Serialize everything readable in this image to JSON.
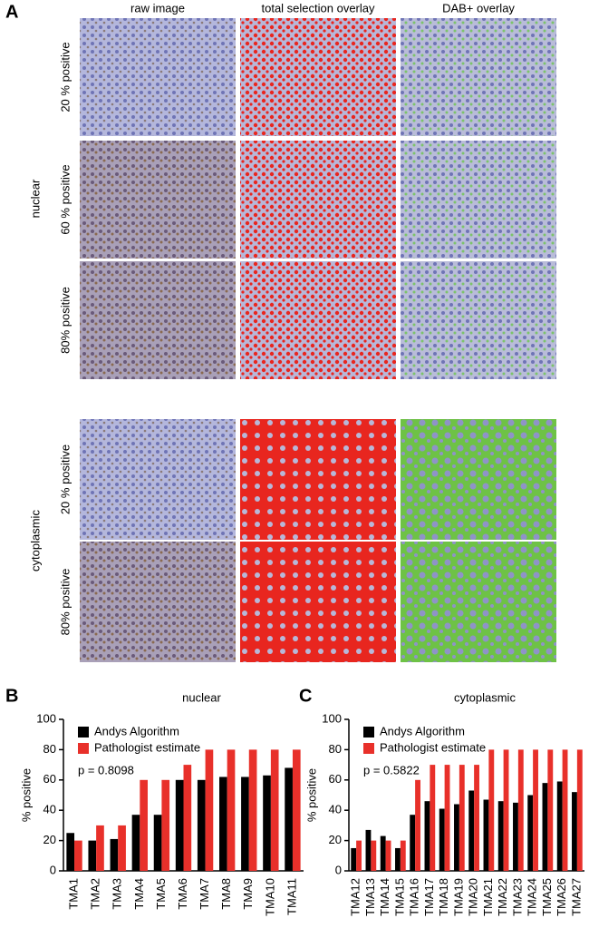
{
  "panel_a": {
    "label": "A",
    "columns": [
      "raw image",
      "total selection overlay",
      "DAB+ overlay"
    ],
    "groups": [
      {
        "name": "nuclear",
        "rows": [
          "20 % positive",
          "60 % positive",
          "80% positive"
        ]
      },
      {
        "name": "cytoplasmic",
        "rows": [
          "20 % positive",
          "80% positive"
        ]
      }
    ]
  },
  "chart_data": [
    {
      "type": "bar",
      "panel": "B",
      "title": "nuclear",
      "ylabel": "% positive",
      "annotation": "p = 0.8098",
      "categories": [
        "TMA1",
        "TMA2",
        "TMA3",
        "TMA4",
        "TMA5",
        "TMA6",
        "TMA7",
        "TMA8",
        "TMA9",
        "TMA10",
        "TMA11"
      ],
      "series": [
        {
          "name": "Andys Algorithm",
          "color": "#000000",
          "values": [
            25,
            20,
            21,
            37,
            37,
            60,
            60,
            62,
            62,
            63,
            68
          ]
        },
        {
          "name": "Pathologist estimate",
          "color": "#e8302a",
          "values": [
            20,
            30,
            30,
            60,
            60,
            70,
            80,
            80,
            80,
            80,
            80
          ]
        }
      ],
      "ylim": [
        0,
        100
      ],
      "yticks": [
        0,
        20,
        40,
        60,
        80,
        100
      ],
      "legend": "upper left"
    },
    {
      "type": "bar",
      "panel": "C",
      "title": "cytoplasmic",
      "ylabel": "% positive",
      "annotation": "p = 0.5822",
      "categories": [
        "TMA12",
        "TMA13",
        "TMA14",
        "TMA15",
        "TMA16",
        "TMA17",
        "TMA18",
        "TMA19",
        "TMA20",
        "TMA21",
        "TMA22",
        "TMA23",
        "TMA24",
        "TMA25",
        "TMA26",
        "TMA27"
      ],
      "series": [
        {
          "name": "Andys Algorithm",
          "color": "#000000",
          "values": [
            15,
            27,
            23,
            15,
            37,
            46,
            41,
            44,
            53,
            47,
            46,
            45,
            50,
            58,
            59,
            52
          ]
        },
        {
          "name": "Pathologist estimate",
          "color": "#e8302a",
          "values": [
            20,
            20,
            20,
            20,
            60,
            70,
            70,
            70,
            70,
            80,
            80,
            80,
            80,
            80,
            80,
            80
          ]
        }
      ],
      "ylim": [
        0,
        100
      ],
      "yticks": [
        0,
        20,
        40,
        60,
        80,
        100
      ],
      "legend": "upper left"
    }
  ]
}
